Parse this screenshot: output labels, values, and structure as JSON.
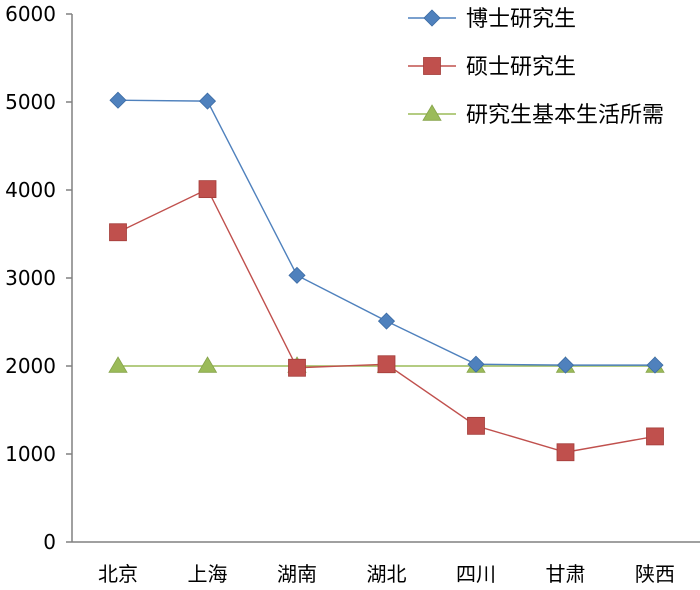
{
  "chart_data": {
    "type": "line",
    "categories": [
      "北京",
      "上海",
      "湖南",
      "湖北",
      "四川",
      "甘肃",
      "陕西"
    ],
    "ylim": [
      0,
      6000
    ],
    "yticks": [
      0,
      1000,
      2000,
      3000,
      4000,
      5000,
      6000
    ],
    "grid": false,
    "legend_position": "top-right",
    "series": [
      {
        "name": "博士研究生",
        "color": "#4f81bd",
        "marker": "diamond",
        "values": [
          5020,
          5010,
          3030,
          2510,
          2020,
          2010,
          2010
        ]
      },
      {
        "name": "硕士研究生",
        "color": "#c0504d",
        "marker": "square",
        "values": [
          3520,
          4010,
          1980,
          2020,
          1320,
          1020,
          1200
        ]
      },
      {
        "name": "研究生基本生活所需",
        "color": "#9bbb59",
        "marker": "triangle",
        "values": [
          2000,
          2000,
          2000,
          2000,
          2000,
          2000,
          2000
        ]
      }
    ]
  }
}
